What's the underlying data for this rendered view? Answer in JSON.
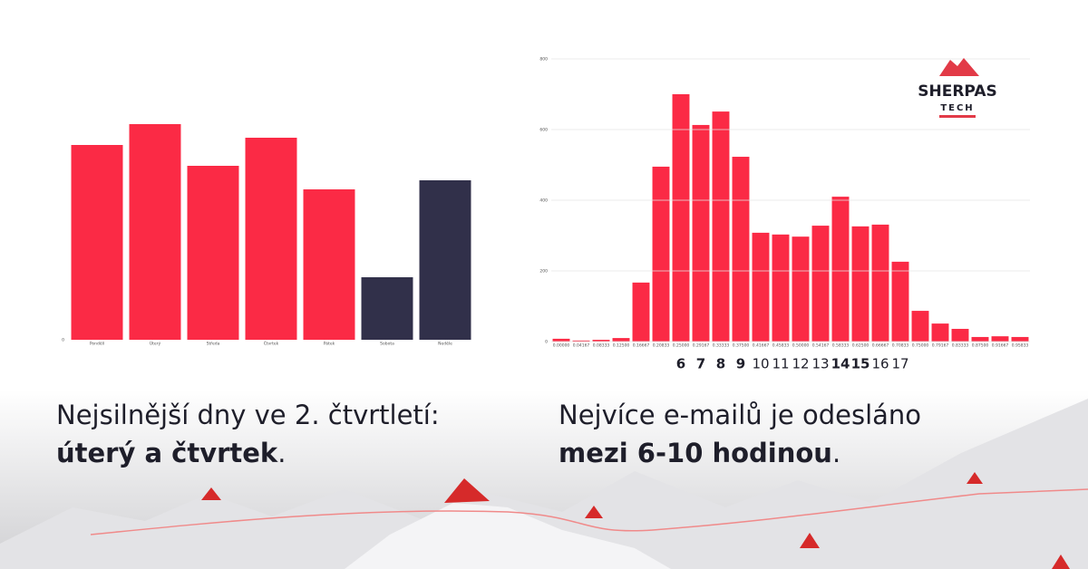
{
  "chart_data": [
    {
      "type": "bar",
      "categories": [
        "Pondělí",
        "Úterý",
        "Středa",
        "Čtvrtek",
        "Pátek",
        "Sobota",
        "Neděle"
      ],
      "values": [
        215,
        238,
        192,
        223,
        166,
        69,
        176
      ],
      "colors": [
        "#fb2a45",
        "#fb2a45",
        "#fb2a45",
        "#fb2a45",
        "#fb2a45",
        "#31304a",
        "#31304a"
      ],
      "ylim": [
        0,
        250
      ],
      "yticks": [
        0
      ],
      "grid": false
    },
    {
      "type": "bar",
      "categories": [
        "0.00000",
        "0.04167",
        "0.08333",
        "0.12500",
        "0.16667",
        "0.20833",
        "0.25000",
        "0.29167",
        "0.33333",
        "0.37500",
        "0.41667",
        "0.45833",
        "0.50000",
        "0.54167",
        "0.58333",
        "0.62500",
        "0.66667",
        "0.70833",
        "0.75000",
        "0.79167",
        "0.83333",
        "0.87500",
        "0.91667",
        "0.95833"
      ],
      "values": [
        8,
        3,
        5,
        10,
        167,
        495,
        700,
        613,
        651,
        523,
        308,
        303,
        297,
        328,
        410,
        326,
        331,
        226,
        87,
        51,
        36,
        13,
        15,
        13
      ],
      "color": "#fb2a45",
      "ylim": [
        0,
        800
      ],
      "yticks": [
        0,
        200,
        400,
        600,
        800
      ],
      "grid": true,
      "hour_labels": {
        "labels": [
          "6",
          "7",
          "8",
          "9",
          "10",
          "11",
          "12",
          "13",
          "14",
          "15",
          "16",
          "17"
        ],
        "bold": [
          true,
          true,
          true,
          true,
          false,
          false,
          false,
          false,
          true,
          true,
          false,
          false
        ]
      }
    }
  ],
  "captions": [
    {
      "line1": "Nejsilnější dny ve 2. čtvrtletí:",
      "bold": "úterý a čtvrtek",
      "end": "."
    },
    {
      "line1": "Nejvíce e-mailů je odesláno",
      "bold": "mezi 6-10 hodinou",
      "end": "."
    }
  ],
  "logo": {
    "name": "SHERPAS",
    "sub": "TECH"
  }
}
